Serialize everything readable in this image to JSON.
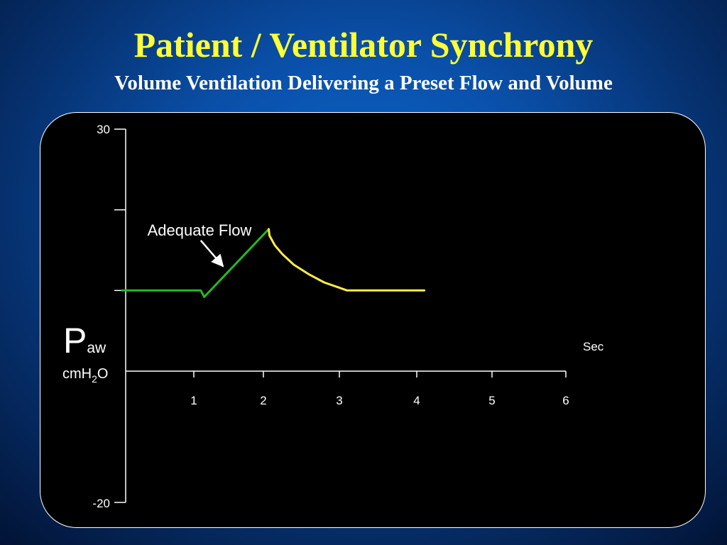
{
  "title": "Patient / Ventilator Synchrony",
  "subtitle": "Volume Ventilation Delivering a Preset Flow and Volume",
  "chart_data": {
    "type": "line",
    "title": "Patient / Ventilator Synchrony",
    "subtitle": "Volume Ventilation Delivering a Preset Flow and Volume",
    "ylabel_main": "P",
    "ylabel_sub": "aw",
    "yunit_pre": "cmH",
    "yunit_sub": "2",
    "yunit_post": "O",
    "xunit": "Sec",
    "ylim": [
      -20,
      30
    ],
    "xlim": [
      0,
      6
    ],
    "y_tick_labels": [
      "30",
      "-20"
    ],
    "y_tick_values": [
      30,
      20,
      10,
      -20
    ],
    "x_ticks": [
      "1",
      "2",
      "3",
      "4",
      "5",
      "6"
    ],
    "grid": false,
    "colors": {
      "inspiration": "#22bb22",
      "expiration": "#ffee44"
    },
    "series": [
      {
        "color": "#22bb22",
        "points": [
          [
            -0.05,
            10
          ],
          [
            1.1,
            10
          ],
          [
            1.15,
            9.2
          ],
          [
            2.07,
            17.6
          ]
        ]
      },
      {
        "color": "#ffee44",
        "points": [
          [
            2.07,
            17.6
          ],
          [
            2.08,
            16.8
          ],
          [
            2.15,
            15.6
          ],
          [
            2.25,
            14.5
          ],
          [
            2.4,
            13.2
          ],
          [
            2.6,
            12.0
          ],
          [
            2.8,
            11.0
          ],
          [
            3.0,
            10.35
          ],
          [
            3.1,
            10.0
          ],
          [
            4.1,
            10.0
          ]
        ]
      }
    ],
    "annotations": [
      {
        "text": "Adequate Flow",
        "arrow_from": [
          1.1,
          16.2
        ],
        "arrow_to": [
          1.42,
          13.0
        ]
      }
    ]
  }
}
